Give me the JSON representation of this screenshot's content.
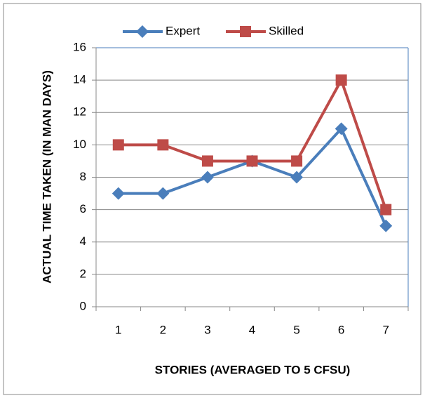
{
  "chart_data": {
    "type": "line",
    "xlabel": "STORIES (AVERAGED TO 5 CFSU)",
    "ylabel": "ACTUAL TIME TAKEN (IN MAN DAYS)",
    "categories": [
      "1",
      "2",
      "3",
      "4",
      "5",
      "6",
      "7"
    ],
    "series": [
      {
        "name": "Expert",
        "color": "#4a7ebb",
        "marker": "diamond",
        "values": [
          7,
          7,
          8,
          9,
          8,
          11,
          5
        ]
      },
      {
        "name": "Skilled",
        "color": "#be4b48",
        "marker": "square",
        "values": [
          10,
          10,
          9,
          9,
          9,
          14,
          6
        ]
      }
    ],
    "ylim": [
      0,
      16
    ],
    "yticks": [
      0,
      2,
      4,
      6,
      8,
      10,
      12,
      14,
      16
    ],
    "grid": true,
    "legend": "top"
  }
}
